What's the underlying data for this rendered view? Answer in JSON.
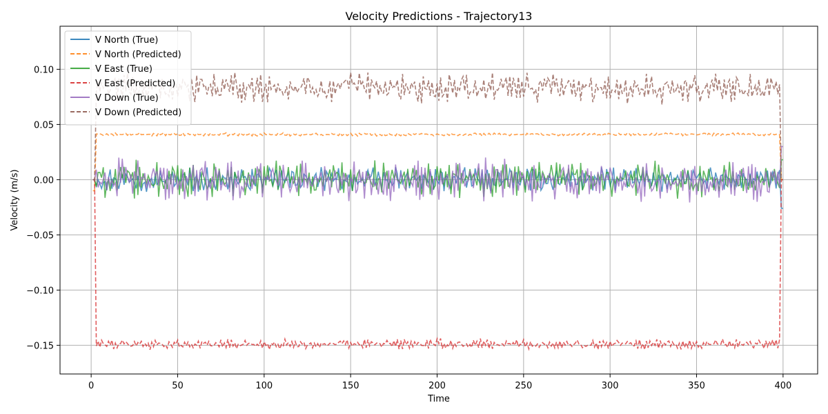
{
  "chart_data": {
    "type": "line",
    "title": "Velocity Predictions - Trajectory13",
    "xlabel": "Time",
    "ylabel": "Velocity (m/s)",
    "xlim": [
      -18,
      420
    ],
    "ylim": [
      -0.176,
      0.139
    ],
    "x_ticks": [
      0,
      50,
      100,
      150,
      200,
      250,
      300,
      350,
      400
    ],
    "y_ticks": [
      -0.15,
      -0.1,
      -0.05,
      0.0,
      0.05,
      0.1
    ],
    "y_tick_labels": [
      "−0.15",
      "−0.10",
      "−0.05",
      "0.00",
      "0.05",
      "0.10"
    ],
    "grid": true,
    "legend_position": "top-left",
    "x_range": [
      1,
      400
    ],
    "series": [
      {
        "name": "V North (True)",
        "color": "#1f77b4",
        "style": "solid",
        "approx_level": 0.0,
        "noise_amplitude": 0.009,
        "start_value": 0.0,
        "end_value": -0.026
      },
      {
        "name": "V North (Predicted)",
        "color": "#ff7f0e",
        "style": "dashed",
        "approx_level": 0.041,
        "noise_amplitude": 0.0012,
        "start_value": -0.01,
        "end_value": 0.0
      },
      {
        "name": "V East (True)",
        "color": "#2ca02c",
        "style": "solid",
        "approx_level": 0.0,
        "noise_amplitude": 0.014,
        "start_value": 0.0,
        "end_value": 0.018
      },
      {
        "name": "V East (Predicted)",
        "color": "#d62728",
        "style": "dashed",
        "approx_level": -0.149,
        "noise_amplitude": 0.004,
        "start_value": 0.0,
        "end_value": 0.0
      },
      {
        "name": "V Down (True)",
        "color": "#9467bd",
        "style": "solid",
        "approx_level": 0.0,
        "noise_amplitude": 0.016,
        "start_value": 0.0,
        "end_value": 0.03
      },
      {
        "name": "V Down (Predicted)",
        "color": "#8c564b",
        "style": "dashed",
        "approx_level": 0.083,
        "noise_amplitude": 0.012,
        "start_value": 0.0,
        "end_value": 0.0
      }
    ]
  }
}
